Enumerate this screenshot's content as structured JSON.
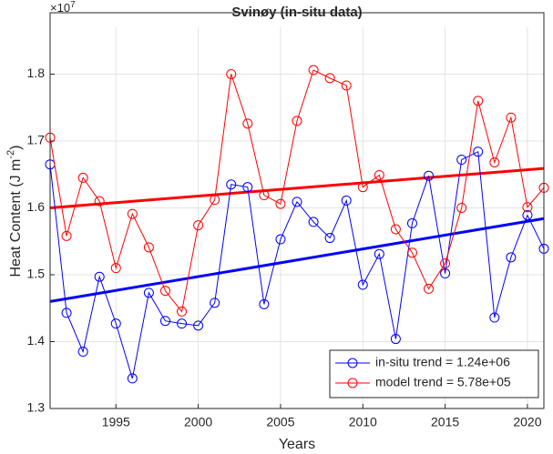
{
  "chart_data": {
    "type": "line",
    "title": "Svinøy (in-situ data)",
    "xlabel": "Years",
    "ylabel": {
      "text": "Heat Content (J m",
      "superscript": "-2",
      "suffix": ")"
    },
    "y_multiplier": {
      "base": "×10",
      "exponent": "7"
    },
    "x": [
      1991,
      1992,
      1993,
      1994,
      1995,
      1996,
      1997,
      1998,
      1999,
      2000,
      2001,
      2002,
      2003,
      2004,
      2005,
      2006,
      2007,
      2008,
      2009,
      2010,
      2011,
      2012,
      2013,
      2014,
      2015,
      2016,
      2017,
      2018,
      2019,
      2020,
      2021
    ],
    "series": [
      {
        "name": "in-situ trend = 1.24e+06",
        "color": "#0000ff",
        "values": [
          1.665,
          1.443,
          1.385,
          1.497,
          1.427,
          1.345,
          1.473,
          1.431,
          1.427,
          1.424,
          1.458,
          1.635,
          1.631,
          1.456,
          1.553,
          1.609,
          1.579,
          1.555,
          1.611,
          1.485,
          1.531,
          1.404,
          1.577,
          1.648,
          1.502,
          1.672,
          1.684,
          1.436,
          1.526,
          1.589,
          1.539
        ],
        "trend": [
          1.46,
          1.584
        ]
      },
      {
        "name": "model trend = 5.78e+05",
        "color": "#ff0000",
        "values": [
          1.705,
          1.558,
          1.645,
          1.61,
          1.51,
          1.591,
          1.541,
          1.476,
          1.445,
          1.574,
          1.612,
          1.8,
          1.726,
          1.619,
          1.606,
          1.73,
          1.806,
          1.794,
          1.783,
          1.631,
          1.649,
          1.568,
          1.533,
          1.479,
          1.517,
          1.6,
          1.76,
          1.668,
          1.735,
          1.601,
          1.63
        ],
        "trend": [
          1.6,
          1.659
        ]
      }
    ],
    "xlim": [
      1991,
      2021
    ],
    "xticks": [
      1995,
      2000,
      2005,
      2010,
      2015,
      2020
    ],
    "ylim": [
      1.3,
      1.87
    ],
    "yticks": [
      1.3,
      1.4,
      1.5,
      1.6,
      1.7,
      1.8
    ],
    "grid": true,
    "legend": "lower right"
  }
}
